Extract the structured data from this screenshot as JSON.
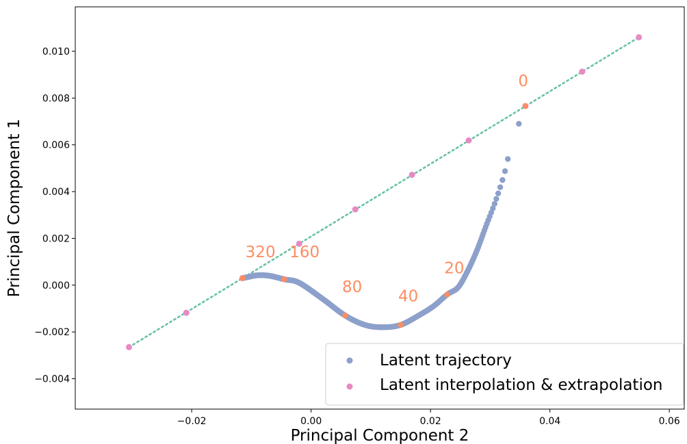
{
  "chart_data": {
    "type": "scatter",
    "title": "",
    "xlabel": "Principal Component 2",
    "ylabel": "Principal Component 1",
    "xlim": [
      -0.0395,
      0.0625
    ],
    "ylim": [
      -0.0053,
      0.0119
    ],
    "xticks": [
      -0.02,
      0.0,
      0.02,
      0.04,
      0.06
    ],
    "xtick_labels": [
      "−0.02",
      "0.00",
      "0.02",
      "0.04",
      "0.06"
    ],
    "yticks": [
      -0.004,
      -0.002,
      0.0,
      0.002,
      0.004,
      0.006,
      0.008,
      0.01
    ],
    "ytick_labels": [
      "−0.004",
      "−0.002",
      "0.000",
      "0.002",
      "0.004",
      "0.006",
      "0.008",
      "0.010"
    ],
    "grid": false,
    "legend_position": "lower-right",
    "colors": {
      "trajectory": "#8da0cb",
      "interpolation": "#e78ac3",
      "highlight": "#fc8d62",
      "line": "#66c2a5"
    },
    "series": [
      {
        "name": "Latent trajectory",
        "control_points": [
          [
            0.0348,
            0.0069
          ],
          [
            0.0336,
            0.0061
          ],
          [
            0.0324,
            0.0048
          ],
          [
            0.0309,
            0.0036
          ],
          [
            0.0294,
            0.0026
          ],
          [
            0.0278,
            0.0015
          ],
          [
            0.0262,
            0.0006
          ],
          [
            0.0246,
            -0.0001
          ],
          [
            0.0228,
            -0.0004
          ],
          [
            0.0205,
            -0.0009
          ],
          [
            0.018,
            -0.0013
          ],
          [
            0.015,
            -0.0017
          ],
          [
            0.012,
            -0.0018
          ],
          [
            0.009,
            -0.0017
          ],
          [
            0.0057,
            -0.0013
          ],
          [
            0.002,
            -0.0006
          ],
          [
            -0.002,
            0.0001
          ],
          [
            -0.0045,
            0.00025
          ],
          [
            -0.007,
            0.0004
          ],
          [
            -0.009,
            0.00042
          ],
          [
            -0.0105,
            0.00035
          ],
          [
            -0.0115,
            0.0003
          ]
        ]
      },
      {
        "name": "Latent interpolation & extrapolation",
        "x": [
          -0.0305,
          -0.0209,
          -0.0115,
          -0.002,
          0.0074,
          0.0169,
          0.0264,
          0.0359,
          0.0454,
          0.0549
        ],
        "y": [
          -0.00265,
          -0.00118,
          0.0003,
          0.00177,
          0.00324,
          0.00472,
          0.00619,
          0.00766,
          0.00913,
          0.0106
        ]
      }
    ],
    "highlighted_points": {
      "x": [
        0.0359,
        0.0228,
        0.015,
        0.0057,
        -0.0045,
        -0.0115
      ],
      "y": [
        0.00766,
        -0.0004,
        -0.0017,
        -0.0013,
        0.00025,
        0.0003
      ]
    },
    "annotations": [
      {
        "text": "0",
        "x": 0.0347,
        "y": 0.0085
      },
      {
        "text": "20",
        "x": 0.0223,
        "y": 0.0005
      },
      {
        "text": "40",
        "x": 0.0146,
        "y": -0.0007
      },
      {
        "text": "80",
        "x": 0.0052,
        "y": -0.0003
      },
      {
        "text": "160",
        "x": -0.0036,
        "y": 0.0012
      },
      {
        "text": "320",
        "x": -0.011,
        "y": 0.0012
      }
    ]
  }
}
